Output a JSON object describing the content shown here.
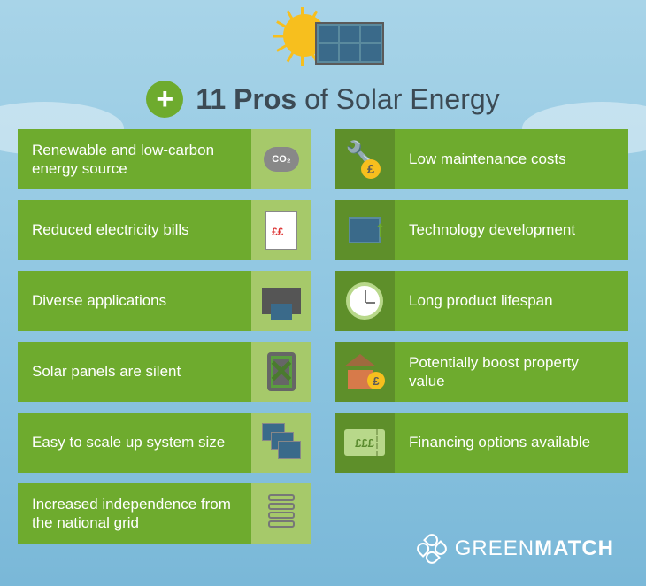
{
  "title": {
    "prefix": "11 Pros",
    "suffix": " of Solar Energy",
    "fontsize": 32,
    "color": "#3c4a54"
  },
  "plus_badge": {
    "bg": "#6eab2e",
    "fg": "#ffffff"
  },
  "item_colors": {
    "text_bg": "#6eab2e",
    "icon_bg": "#a6c96a",
    "alt_icon_bg": "#5e8f2a",
    "text_color": "#ffffff"
  },
  "left_items": [
    {
      "label": "Renewable and low-carbon energy source",
      "icon": "co2"
    },
    {
      "label": "Reduced electricity bills",
      "icon": "bill"
    },
    {
      "label": "Diverse applications",
      "icon": "printer"
    },
    {
      "label": "Solar panels are silent",
      "icon": "speaker"
    },
    {
      "label": "Easy to scale up system size",
      "icon": "panels"
    },
    {
      "label": "Increased independence from the national grid",
      "icon": "grid"
    }
  ],
  "right_items": [
    {
      "label": "Low maintenance costs",
      "icon": "tools"
    },
    {
      "label": "Technology development",
      "icon": "tech"
    },
    {
      "label": "Long product lifespan",
      "icon": "clock"
    },
    {
      "label": "Potentially boost property value",
      "icon": "house"
    },
    {
      "label": "Financing options available",
      "icon": "ticket",
      "ticket_text": "£££"
    }
  ],
  "logo": {
    "brand_light": "GREEN",
    "brand_bold": "MATCH",
    "color": "#ffffff"
  },
  "background": {
    "top": "#a8d4e8",
    "bottom": "#7ab8d8"
  },
  "sun_color": "#f7bf1e",
  "panel_color": "#3a6a8a"
}
